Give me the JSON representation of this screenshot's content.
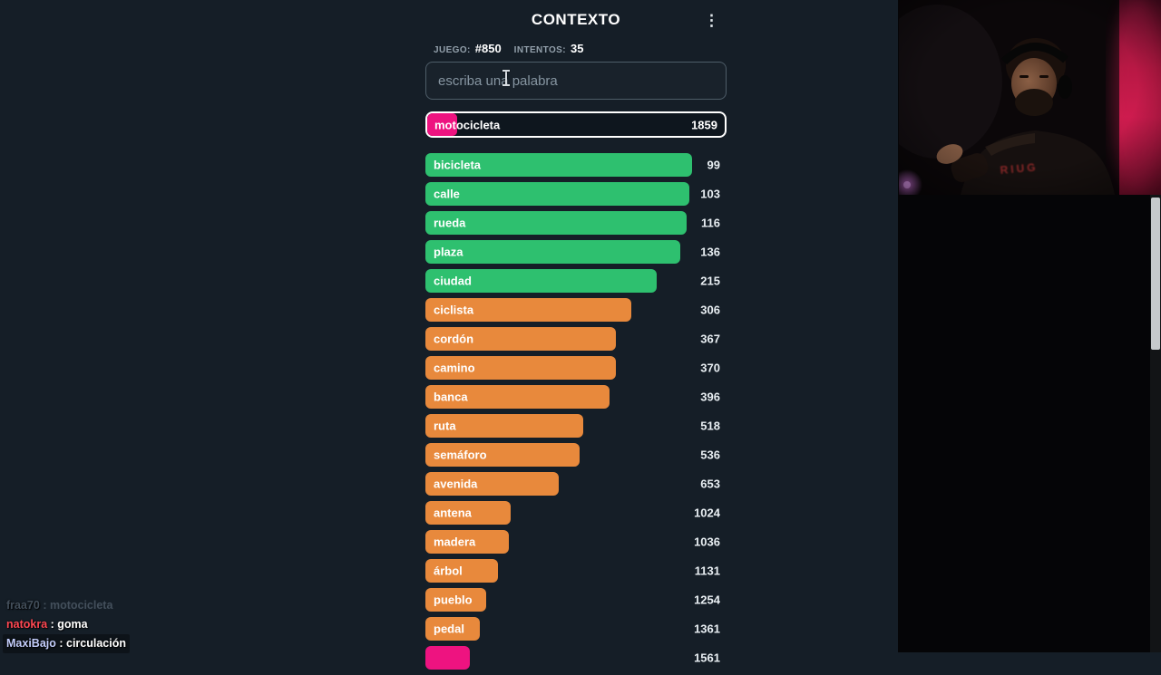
{
  "header": {
    "title": "CONTEXTO",
    "menu_icon": "⋮",
    "game_label": "JUEGO:",
    "game_number": "#850",
    "attempts_label": "INTENTOS:",
    "attempts_value": "35"
  },
  "input": {
    "placeholder": "escriba una palabra",
    "value": ""
  },
  "current_guess": {
    "word": "motocicleta",
    "rank": "1859",
    "color": "#ee1380",
    "bar_pct": 10
  },
  "guesses": [
    {
      "word": "bicicleta",
      "rank": "99",
      "color": "#2ec06f",
      "bar_pct": 88.5
    },
    {
      "word": "calle",
      "rank": "103",
      "color": "#2ec06f",
      "bar_pct": 87.6
    },
    {
      "word": "rueda",
      "rank": "116",
      "color": "#2ec06f",
      "bar_pct": 86.7
    },
    {
      "word": "plaza",
      "rank": "136",
      "color": "#2ec06f",
      "bar_pct": 84.5
    },
    {
      "word": "ciudad",
      "rank": "215",
      "color": "#2ec06f",
      "bar_pct": 76.7
    },
    {
      "word": "ciclista",
      "rank": "306",
      "color": "#e8893c",
      "bar_pct": 68.5
    },
    {
      "word": "cordón",
      "rank": "367",
      "color": "#e8893c",
      "bar_pct": 63.4
    },
    {
      "word": "camino",
      "rank": "370",
      "color": "#e8893c",
      "bar_pct": 63.2
    },
    {
      "word": "banca",
      "rank": "396",
      "color": "#e8893c",
      "bar_pct": 61.2
    },
    {
      "word": "ruta",
      "rank": "518",
      "color": "#e8893c",
      "bar_pct": 52.4
    },
    {
      "word": "semáforo",
      "rank": "536",
      "color": "#e8893c",
      "bar_pct": 51.2
    },
    {
      "word": "avenida",
      "rank": "653",
      "color": "#e8893c",
      "bar_pct": 44.2
    },
    {
      "word": "antena",
      "rank": "1024",
      "color": "#e8893c",
      "bar_pct": 28.2
    },
    {
      "word": "madera",
      "rank": "1036",
      "color": "#e8893c",
      "bar_pct": 27.6
    },
    {
      "word": "árbol",
      "rank": "1131",
      "color": "#e8893c",
      "bar_pct": 24.2
    },
    {
      "word": "pueblo",
      "rank": "1254",
      "color": "#e8893c",
      "bar_pct": 20.3
    },
    {
      "word": "pedal",
      "rank": "1361",
      "color": "#e8893c",
      "bar_pct": 18.2
    },
    {
      "word": "",
      "rank": "1561",
      "color": "#ee1380",
      "bar_pct": 14.8
    }
  ],
  "chat": {
    "separator": " : ",
    "lines": [
      {
        "user": "fraa70",
        "message": "motocicleta",
        "user_color": "#434f5b",
        "faded": true
      },
      {
        "user": "natokra",
        "message": "goma",
        "user_color": "#ff4752",
        "faded": false
      },
      {
        "user": "MaxiBajo",
        "message": "circulación",
        "user_color": "#c3cdfb",
        "faded": false
      }
    ]
  },
  "webcam": {
    "shirt_text": "RIUG"
  },
  "colors": {
    "background": "#151e27",
    "right_panel": "#050507",
    "green": "#2ec06f",
    "orange": "#e8893c",
    "pink": "#ee1380",
    "highlight_border": "#ffffff"
  }
}
